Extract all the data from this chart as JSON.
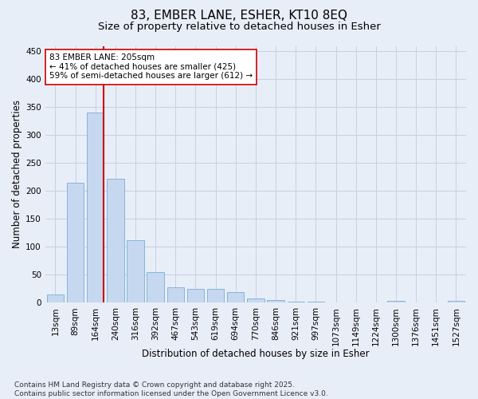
{
  "title_line1": "83, EMBER LANE, ESHER, KT10 8EQ",
  "title_line2": "Size of property relative to detached houses in Esher",
  "xlabel": "Distribution of detached houses by size in Esher",
  "ylabel": "Number of detached properties",
  "categories": [
    "13sqm",
    "89sqm",
    "164sqm",
    "240sqm",
    "316sqm",
    "392sqm",
    "467sqm",
    "543sqm",
    "619sqm",
    "694sqm",
    "770sqm",
    "846sqm",
    "921sqm",
    "997sqm",
    "1073sqm",
    "1149sqm",
    "1224sqm",
    "1300sqm",
    "1376sqm",
    "1451sqm",
    "1527sqm"
  ],
  "values": [
    15,
    215,
    340,
    222,
    112,
    54,
    27,
    25,
    25,
    19,
    8,
    5,
    2,
    2,
    1,
    0,
    0,
    3,
    0,
    0,
    3
  ],
  "bar_color": "#c5d8f0",
  "bar_edge_color": "#7aadd4",
  "vline_color": "#cc0000",
  "annotation_text": "83 EMBER LANE: 205sqm\n← 41% of detached houses are smaller (425)\n59% of semi-detached houses are larger (612) →",
  "annotation_box_color": "#ffffff",
  "annotation_box_edge": "#cc0000",
  "ylim": [
    0,
    460
  ],
  "yticks": [
    0,
    50,
    100,
    150,
    200,
    250,
    300,
    350,
    400,
    450
  ],
  "grid_color": "#c8cfe0",
  "bg_color": "#e8eef8",
  "footnote": "Contains HM Land Registry data © Crown copyright and database right 2025.\nContains public sector information licensed under the Open Government Licence v3.0.",
  "title_fontsize": 11,
  "subtitle_fontsize": 9.5,
  "label_fontsize": 8.5,
  "tick_fontsize": 7.5,
  "footnote_fontsize": 6.5
}
